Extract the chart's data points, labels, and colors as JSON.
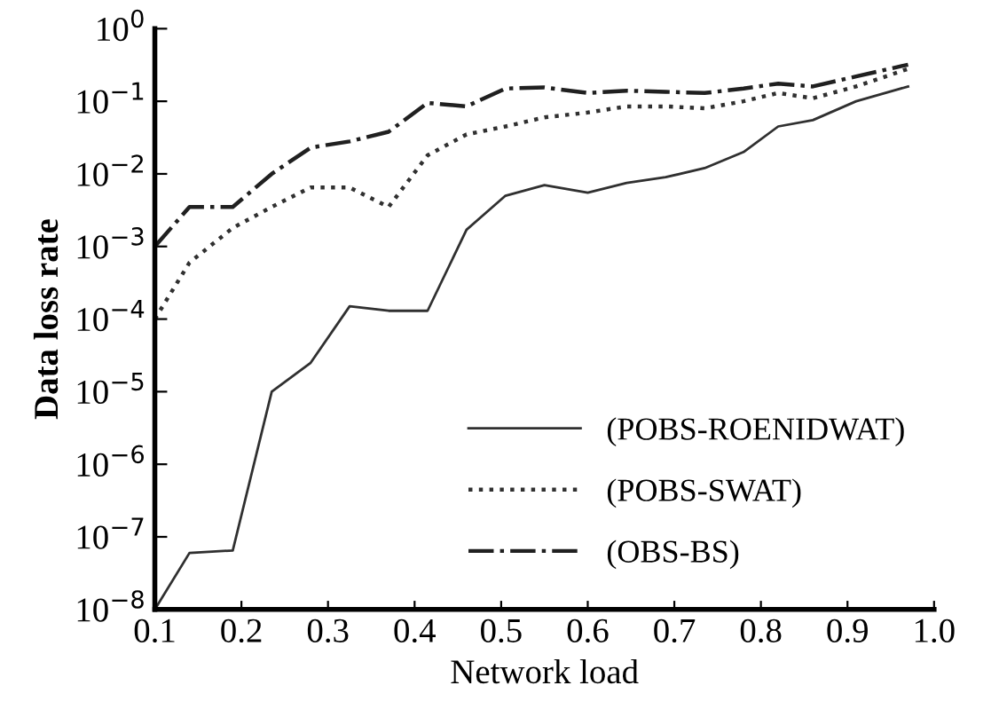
{
  "chart_data": {
    "type": "line",
    "xlabel": "Network load",
    "ylabel": "Data loss rate",
    "log": "y",
    "legend": "bottom right",
    "grid": false,
    "xlim": [
      0.1,
      1.0
    ],
    "xticks": [
      0.1,
      0.2,
      0.3,
      0.4,
      0.5,
      0.6,
      0.7,
      0.8,
      0.9,
      {
        "value": 1.0,
        "label": "1.0"
      }
    ],
    "ylim": [
      1e-08,
      1
    ],
    "yticks": [
      {
        "value": 1e-08,
        "label": "10$^{−8}$"
      },
      {
        "value": 1e-07,
        "label": "10$^{−7}$"
      },
      {
        "value": 1e-06,
        "label": "10$^{−6}$"
      },
      {
        "value": 1e-05,
        "label": "10$^{−5}$"
      },
      {
        "value": 0.0001,
        "label": "10$^{−4}$"
      },
      {
        "value": 0.001,
        "label": "10$^{−3}$"
      },
      {
        "value": 0.01,
        "label": "10$^{−2}$"
      },
      {
        "value": 0.1,
        "label": "10$^{−1}$"
      },
      {
        "value": 1,
        "label": "10$^{0}$"
      }
    ],
    "x": [
      0.1,
      0.14,
      0.19,
      0.235,
      0.28,
      0.325,
      0.37,
      0.415,
      0.46,
      0.505,
      0.55,
      0.6,
      0.645,
      0.69,
      0.735,
      0.78,
      0.82,
      0.86,
      0.91,
      0.97
    ],
    "series": [
      {
        "name": "(POBS-ROENIDWAT)",
        "color": "#303030",
        "line_style": "solid",
        "values": [
          1e-08,
          6e-08,
          6.5e-08,
          1e-05,
          2.5e-05,
          0.00015,
          0.00013,
          0.00013,
          0.0017,
          0.005,
          0.007,
          0.0055,
          0.0075,
          0.009,
          0.012,
          0.02,
          0.045,
          0.055,
          0.1,
          0.16
        ]
      },
      {
        "name": "(POBS-SWAT)",
        "color": "#303030",
        "line_style": "dotted",
        "values": [
          0.0001,
          0.0006,
          0.0018,
          0.0035,
          0.0065,
          0.0065,
          0.0035,
          0.018,
          0.035,
          0.045,
          0.06,
          0.07,
          0.085,
          0.085,
          0.08,
          0.1,
          0.13,
          0.11,
          0.16,
          0.28
        ]
      },
      {
        "name": "(OBS-BS)",
        "color": "#202020",
        "line_style": "dashdot",
        "values": [
          0.001,
          0.0035,
          0.0035,
          0.01,
          0.023,
          0.028,
          0.038,
          0.095,
          0.085,
          0.15,
          0.155,
          0.13,
          0.14,
          0.135,
          0.13,
          0.15,
          0.175,
          0.16,
          0.22,
          0.32
        ]
      }
    ]
  }
}
